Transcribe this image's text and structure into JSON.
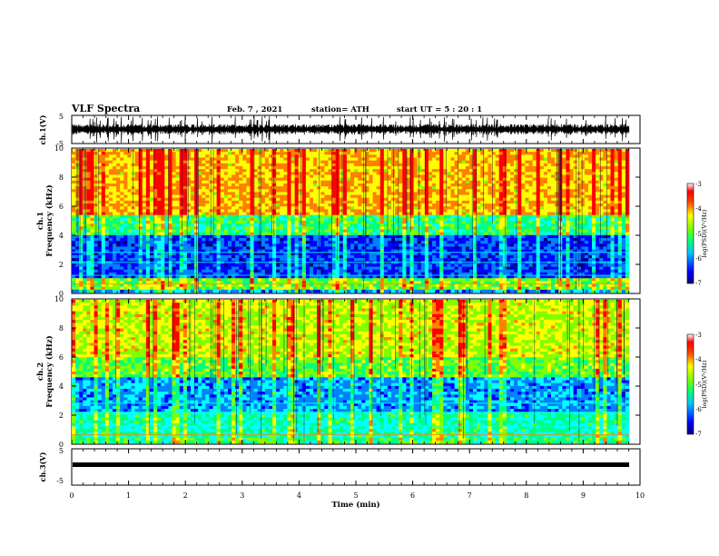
{
  "header": {
    "title": "VLF  Spectra",
    "date": "Feb. 7  , 2021",
    "station": "station= ATH",
    "start": "start  UT  =   5  : 20 : 1"
  },
  "chart_data": [
    {
      "type": "line",
      "name": "ch1-waveform",
      "ylabel": "ch.1(V)",
      "ylim": [
        -5,
        5
      ],
      "yticks": [
        "5",
        "-5"
      ],
      "xlim": [
        0,
        10
      ]
    },
    {
      "type": "heatmap",
      "name": "ch1-spectrogram",
      "ylabel": "ch.1\nFrequency (kHz)",
      "ylabel_top": "ch.1",
      "ylabel_bottom": "Frequency  (kHz)",
      "ylim": [
        0,
        10
      ],
      "yticks": [
        "0",
        "2",
        "4",
        "6",
        "8",
        "10"
      ],
      "xlim": [
        0,
        10
      ],
      "colorbar": {
        "min": -7,
        "max": -3,
        "ticks": [
          "-3",
          "-4",
          "-5",
          "-6",
          "-7"
        ],
        "label": "log(PSD)(V²/Hz)"
      }
    },
    {
      "type": "heatmap",
      "name": "ch2-spectrogram",
      "ylabel_top": "ch.2",
      "ylabel_bottom": "Frequency  (kHz)",
      "ylim": [
        0,
        10
      ],
      "yticks": [
        "0",
        "2",
        "4",
        "6",
        "8",
        "10"
      ],
      "xlim": [
        0,
        10
      ],
      "colorbar": {
        "min": -7,
        "max": -3,
        "ticks": [
          "-3",
          "-4",
          "-5",
          "-6",
          "-7"
        ],
        "label": "log(PSD)(V²/Hz)"
      }
    },
    {
      "type": "line",
      "name": "ch3-waveform",
      "ylabel": "ch.3(V)",
      "ylim": [
        -5,
        5
      ],
      "yticks": [
        "5",
        "-5"
      ],
      "xlim": [
        0,
        10
      ],
      "xticks": [
        "0",
        "1",
        "2",
        "3",
        "4",
        "5",
        "6",
        "7",
        "8",
        "9",
        "10"
      ],
      "xlabel": "Time  (min)"
    }
  ],
  "colors": {
    "colormap": [
      "#00007f",
      "#0000ff",
      "#0080ff",
      "#00ffff",
      "#00ff80",
      "#80ff00",
      "#ffff00",
      "#ff8000",
      "#ff0000",
      "#ffffff"
    ]
  }
}
